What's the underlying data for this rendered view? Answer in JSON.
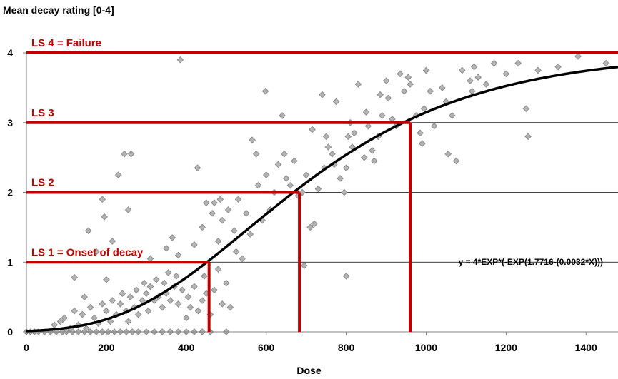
{
  "chart_data": {
    "type": "scatter",
    "ylabel": "Mean decay rating [0-4]",
    "xlabel": "Dose",
    "xlim": [
      0,
      1480
    ],
    "ylim": [
      0,
      4
    ],
    "xticks": [
      0,
      200,
      400,
      600,
      800,
      1000,
      1200,
      1400
    ],
    "yticks": [
      0,
      1,
      2,
      3,
      4
    ],
    "grid": "horizontal",
    "equation": "y = 4*EXP*(-EXP(1.7716-(0.0032*X)))",
    "model": {
      "a": 4,
      "b": 1.7716,
      "c": 0.0032
    },
    "limit_states": [
      {
        "label": "LS 1 = Onset of decay",
        "level": 1,
        "dose": 457
      },
      {
        "label": "LS 2",
        "level": 2,
        "dose": 683
      },
      {
        "label": "LS 3",
        "level": 3,
        "dose": 960
      },
      {
        "label": "LS 4 = Failure",
        "level": 4,
        "dose": null
      }
    ],
    "colors": {
      "limit": "#c00000",
      "curve": "#000000",
      "marker_fill": "#b3b3b3",
      "marker_stroke": "#808080"
    },
    "points": [
      [
        0,
        0
      ],
      [
        10,
        0
      ],
      [
        20,
        0
      ],
      [
        30,
        0
      ],
      [
        45,
        0
      ],
      [
        60,
        0
      ],
      [
        75,
        0
      ],
      [
        90,
        0
      ],
      [
        100,
        0
      ],
      [
        115,
        0
      ],
      [
        130,
        0
      ],
      [
        145,
        0
      ],
      [
        160,
        0
      ],
      [
        175,
        0
      ],
      [
        190,
        0
      ],
      [
        205,
        0
      ],
      [
        220,
        0
      ],
      [
        235,
        0
      ],
      [
        250,
        0
      ],
      [
        265,
        0
      ],
      [
        280,
        0
      ],
      [
        300,
        0
      ],
      [
        320,
        0
      ],
      [
        340,
        0
      ],
      [
        360,
        0
      ],
      [
        380,
        0
      ],
      [
        400,
        0
      ],
      [
        420,
        0
      ],
      [
        440,
        0
      ],
      [
        460,
        0
      ],
      [
        500,
        0
      ],
      [
        70,
        0.1
      ],
      [
        85,
        0.15
      ],
      [
        95,
        0.2
      ],
      [
        110,
        0.05
      ],
      [
        120,
        0.3
      ],
      [
        130,
        0.1
      ],
      [
        140,
        0.25
      ],
      [
        150,
        0.05
      ],
      [
        160,
        0.35
      ],
      [
        170,
        0.2
      ],
      [
        180,
        0.12
      ],
      [
        190,
        0.4
      ],
      [
        200,
        0.3
      ],
      [
        210,
        0.15
      ],
      [
        215,
        0.45
      ],
      [
        225,
        0.25
      ],
      [
        235,
        0.4
      ],
      [
        240,
        0.55
      ],
      [
        250,
        0.3
      ],
      [
        255,
        0.15
      ],
      [
        260,
        0.5
      ],
      [
        270,
        0.35
      ],
      [
        275,
        0.6
      ],
      [
        280,
        0.25
      ],
      [
        290,
        0.45
      ],
      [
        295,
        0.7
      ],
      [
        300,
        0.55
      ],
      [
        305,
        0.3
      ],
      [
        310,
        0.65
      ],
      [
        320,
        0.45
      ],
      [
        325,
        0.75
      ],
      [
        330,
        0.5
      ],
      [
        340,
        0.35
      ],
      [
        345,
        0.7
      ],
      [
        350,
        0.55
      ],
      [
        355,
        0.85
      ],
      [
        360,
        0.45
      ],
      [
        370,
        0.65
      ],
      [
        375,
        0.8
      ],
      [
        380,
        0.4
      ],
      [
        390,
        0.6
      ],
      [
        400,
        0.2
      ],
      [
        405,
        0.5
      ],
      [
        410,
        0.35
      ],
      [
        420,
        0.65
      ],
      [
        430,
        0.3
      ],
      [
        440,
        0.45
      ],
      [
        445,
        0.8
      ],
      [
        450,
        0.55
      ],
      [
        460,
        0.25
      ],
      [
        470,
        0.6
      ],
      [
        480,
        0.9
      ],
      [
        490,
        0.4
      ],
      [
        500,
        0.7
      ],
      [
        510,
        0.35
      ],
      [
        120,
        0.78
      ],
      [
        145,
        0.5
      ],
      [
        155,
        1.45
      ],
      [
        175,
        1.15
      ],
      [
        190,
        1.9
      ],
      [
        195,
        1.65
      ],
      [
        200,
        0.75
      ],
      [
        215,
        1.3
      ],
      [
        230,
        2.25
      ],
      [
        245,
        2.55
      ],
      [
        255,
        1.75
      ],
      [
        262,
        2.55
      ],
      [
        310,
        1.05
      ],
      [
        350,
        1.2
      ],
      [
        365,
        1.35
      ],
      [
        380,
        1.1
      ],
      [
        385,
        3.9
      ],
      [
        420,
        1.25
      ],
      [
        428,
        2.35
      ],
      [
        440,
        1.5
      ],
      [
        450,
        1.85
      ],
      [
        465,
        1.7
      ],
      [
        470,
        1.85
      ],
      [
        480,
        1.3
      ],
      [
        485,
        1.9
      ],
      [
        490,
        1.6
      ],
      [
        505,
        1.75
      ],
      [
        520,
        1.45
      ],
      [
        525,
        1.15
      ],
      [
        530,
        1.9
      ],
      [
        540,
        1.05
      ],
      [
        550,
        1.7
      ],
      [
        560,
        1.4
      ],
      [
        565,
        2.75
      ],
      [
        575,
        2.55
      ],
      [
        580,
        2.1
      ],
      [
        590,
        1.6
      ],
      [
        598,
        3.45
      ],
      [
        600,
        2.25
      ],
      [
        610,
        1.75
      ],
      [
        620,
        2.0
      ],
      [
        630,
        2.4
      ],
      [
        640,
        3.1
      ],
      [
        645,
        2.55
      ],
      [
        650,
        2.2
      ],
      [
        660,
        2.1
      ],
      [
        670,
        2.45
      ],
      [
        680,
        1.95
      ],
      [
        690,
        2.0
      ],
      [
        700,
        2.25
      ],
      [
        710,
        1.5
      ],
      [
        715,
        2.9
      ],
      [
        720,
        1.55
      ],
      [
        730,
        2.05
      ],
      [
        740,
        3.4
      ],
      [
        745,
        2.35
      ],
      [
        750,
        2.8
      ],
      [
        755,
        2.65
      ],
      [
        765,
        2.55
      ],
      [
        770,
        2.4
      ],
      [
        775,
        3.3
      ],
      [
        785,
        2.2
      ],
      [
        795,
        2.0
      ],
      [
        800,
        2.35
      ],
      [
        805,
        2.8
      ],
      [
        810,
        3.0
      ],
      [
        815,
        2.65
      ],
      [
        820,
        2.85
      ],
      [
        830,
        3.55
      ],
      [
        845,
        2.5
      ],
      [
        850,
        3.15
      ],
      [
        855,
        2.95
      ],
      [
        865,
        2.6
      ],
      [
        870,
        2.45
      ],
      [
        880,
        2.8
      ],
      [
        885,
        3.4
      ],
      [
        890,
        3.1
      ],
      [
        900,
        3.6
      ],
      [
        905,
        3.35
      ],
      [
        915,
        3.05
      ],
      [
        925,
        2.95
      ],
      [
        935,
        3.7
      ],
      [
        945,
        3.45
      ],
      [
        955,
        3.65
      ],
      [
        960,
        3.55
      ],
      [
        975,
        3.1
      ],
      [
        985,
        2.85
      ],
      [
        990,
        2.7
      ],
      [
        995,
        3.2
      ],
      [
        1000,
        3.75
      ],
      [
        1010,
        3.45
      ],
      [
        1020,
        2.95
      ],
      [
        1040,
        3.5
      ],
      [
        1050,
        3.3
      ],
      [
        1055,
        2.55
      ],
      [
        1065,
        3.1
      ],
      [
        1075,
        2.45
      ],
      [
        1090,
        3.75
      ],
      [
        1110,
        3.6
      ],
      [
        1115,
        3.45
      ],
      [
        1120,
        3.8
      ],
      [
        1130,
        3.65
      ],
      [
        1150,
        3.55
      ],
      [
        1170,
        3.85
      ],
      [
        1200,
        3.7
      ],
      [
        1230,
        3.85
      ],
      [
        1250,
        3.2
      ],
      [
        1255,
        2.8
      ],
      [
        1280,
        3.75
      ],
      [
        1330,
        3.8
      ],
      [
        1380,
        3.95
      ],
      [
        1450,
        3.85
      ],
      [
        800,
        0.8
      ],
      [
        695,
        0.95
      ]
    ]
  }
}
